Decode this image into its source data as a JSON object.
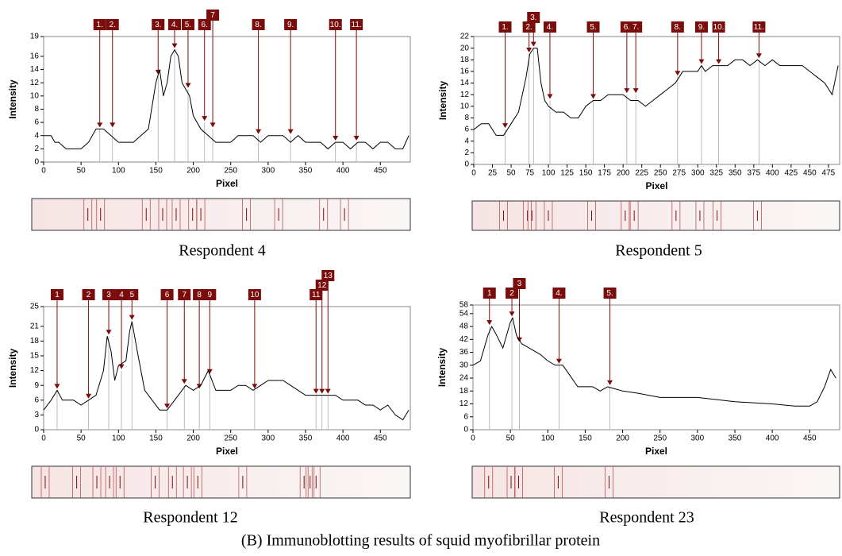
{
  "caption": "(B)  Immunoblotting results of squid myofibrillar protein",
  "chart_data": [
    {
      "type": "line",
      "title": "Respondent 4",
      "y_label": "Intensity",
      "x_label": "Pixel",
      "color": "#000000",
      "x": [
        0,
        10,
        15,
        20,
        30,
        40,
        50,
        60,
        70,
        80,
        90,
        100,
        110,
        120,
        130,
        140,
        150,
        155,
        160,
        165,
        170,
        175,
        180,
        185,
        190,
        195,
        200,
        210,
        220,
        230,
        240,
        250,
        260,
        270,
        280,
        290,
        300,
        310,
        320,
        330,
        340,
        350,
        360,
        370,
        380,
        390,
        400,
        410,
        420,
        430,
        440,
        450,
        460,
        470,
        480,
        488
      ],
      "values": [
        4,
        4,
        3,
        3,
        2,
        2,
        2,
        3,
        5,
        5,
        4,
        3,
        3,
        3,
        4,
        5,
        12,
        14,
        10,
        12,
        16,
        17,
        16,
        12,
        11,
        10,
        7,
        5,
        4,
        3,
        3,
        3,
        4,
        4,
        4,
        3,
        4,
        4,
        4,
        3,
        4,
        3,
        3,
        3,
        2,
        3,
        3,
        2,
        3,
        3,
        2,
        3,
        3,
        2,
        2,
        4
      ],
      "xlim": [
        0,
        490
      ],
      "ylim": [
        0,
        19
      ],
      "xticks": [
        0,
        50,
        100,
        150,
        200,
        250,
        300,
        350,
        400,
        450
      ],
      "yticks": [
        0,
        2,
        4,
        6,
        8,
        10,
        12,
        14,
        16,
        19
      ],
      "peak_labels": [
        "1.",
        "2.",
        "3.",
        "4.",
        "5.",
        "6.",
        "7",
        "8.",
        "9.",
        "10.",
        "11."
      ],
      "peak_x": [
        75,
        92,
        153,
        175,
        193,
        215,
        226,
        287,
        330,
        390,
        418
      ],
      "peak_y": [
        5,
        5,
        13,
        17,
        11,
        6,
        5,
        4,
        4,
        3,
        3
      ]
    },
    {
      "type": "line",
      "title": "Respondent 5",
      "y_label": "Intensity",
      "x_label": "Pixel",
      "color": "#000000",
      "x": [
        0,
        10,
        20,
        30,
        40,
        50,
        60,
        70,
        75,
        80,
        85,
        90,
        95,
        100,
        110,
        120,
        130,
        140,
        150,
        160,
        170,
        180,
        200,
        210,
        220,
        230,
        240,
        250,
        260,
        270,
        275,
        280,
        290,
        300,
        305,
        310,
        320,
        330,
        340,
        350,
        360,
        370,
        380,
        390,
        400,
        410,
        420,
        430,
        440,
        450,
        460,
        470,
        480,
        488
      ],
      "values": [
        6,
        7,
        7,
        5,
        5,
        7,
        9,
        15,
        19,
        20,
        20,
        14,
        11,
        10,
        9,
        9,
        8,
        8,
        10,
        11,
        11,
        12,
        12,
        11,
        11,
        10,
        11,
        12,
        13,
        14,
        15,
        16,
        16,
        16,
        17,
        16,
        17,
        17,
        17,
        18,
        18,
        17,
        18,
        17,
        18,
        17,
        17,
        17,
        17,
        16,
        15,
        14,
        12,
        17
      ],
      "xlim": [
        0,
        490
      ],
      "ylim": [
        0,
        22
      ],
      "xticks": [
        0,
        25,
        50,
        75,
        100,
        125,
        150,
        175,
        200,
        225,
        250,
        275,
        300,
        325,
        350,
        375,
        400,
        425,
        450,
        475
      ],
      "yticks": [
        0,
        2,
        4,
        6,
        8,
        10,
        12,
        14,
        16,
        18,
        20,
        22
      ],
      "peak_labels": [
        "1.",
        "2.",
        "3.",
        "4.",
        "5.",
        "6.",
        "7.",
        "8.",
        "9.",
        "10.",
        "11."
      ],
      "peak_x": [
        42,
        74,
        80,
        102,
        160,
        205,
        217,
        273,
        305,
        328,
        382
      ],
      "peak_y": [
        6,
        19,
        20,
        11,
        11,
        12,
        12,
        15,
        17,
        17,
        18
      ]
    },
    {
      "type": "line",
      "title": "Respondent 12",
      "y_label": "Intensity",
      "x_label": "Pixel",
      "color": "#000000",
      "x": [
        0,
        10,
        18,
        25,
        40,
        50,
        60,
        70,
        80,
        85,
        90,
        95,
        100,
        110,
        115,
        118,
        125,
        135,
        145,
        155,
        165,
        175,
        185,
        190,
        200,
        210,
        220,
        230,
        240,
        250,
        260,
        270,
        280,
        290,
        300,
        310,
        320,
        330,
        340,
        350,
        360,
        370,
        380,
        390,
        400,
        410,
        420,
        430,
        440,
        450,
        460,
        470,
        480,
        488
      ],
      "values": [
        4,
        6,
        8,
        6,
        6,
        5,
        6,
        7,
        12,
        19,
        16,
        10,
        13,
        14,
        20,
        22,
        16,
        8,
        6,
        4,
        4,
        6,
        8,
        9,
        8,
        9,
        12,
        8,
        8,
        8,
        9,
        9,
        8,
        9,
        10,
        10,
        10,
        9,
        8,
        7,
        7,
        7,
        7,
        7,
        6,
        6,
        6,
        5,
        5,
        4,
        5,
        3,
        2,
        4
      ],
      "xlim": [
        0,
        490
      ],
      "ylim": [
        0,
        25
      ],
      "xticks": [
        0,
        50,
        100,
        150,
        200,
        250,
        300,
        350,
        400,
        450
      ],
      "yticks": [
        0,
        3,
        6,
        9,
        12,
        15,
        18,
        21,
        25
      ],
      "peak_labels": [
        "1",
        "2",
        "3",
        "4",
        "5",
        "6",
        "7",
        "8",
        "9",
        "10",
        "11",
        "12",
        "13"
      ],
      "peak_x": [
        18,
        60,
        87,
        104,
        118,
        165,
        188,
        208,
        222,
        282,
        364,
        372,
        380
      ],
      "peak_y": [
        8,
        6,
        19,
        12,
        22,
        4,
        9,
        8,
        11,
        8,
        7,
        7,
        7
      ]
    },
    {
      "type": "line",
      "title": "Respondent 23",
      "y_label": "Intensity",
      "x_label": "Pixel",
      "color": "#000000",
      "x": [
        0,
        10,
        20,
        25,
        30,
        40,
        50,
        53,
        58,
        65,
        75,
        90,
        100,
        110,
        120,
        130,
        140,
        160,
        170,
        180,
        190,
        200,
        220,
        250,
        300,
        350,
        400,
        430,
        450,
        460,
        470,
        478,
        485
      ],
      "values": [
        30,
        32,
        44,
        48,
        45,
        38,
        50,
        52,
        44,
        40,
        38,
        35,
        32,
        30,
        30,
        25,
        20,
        20,
        18,
        20,
        19,
        18,
        17,
        15,
        15,
        13,
        12,
        11,
        11,
        13,
        20,
        28,
        24
      ],
      "xlim": [
        0,
        490
      ],
      "ylim": [
        0,
        58
      ],
      "xticks": [
        0,
        50,
        100,
        150,
        200,
        250,
        300,
        350,
        400,
        450
      ],
      "yticks": [
        0,
        6,
        12,
        18,
        24,
        30,
        36,
        42,
        48,
        54,
        58
      ],
      "peak_labels": [
        "1",
        "2",
        "3",
        "4.",
        "5."
      ],
      "peak_x": [
        22,
        52,
        62,
        115,
        183
      ],
      "peak_y": [
        48,
        52,
        40,
        30,
        20
      ]
    }
  ]
}
